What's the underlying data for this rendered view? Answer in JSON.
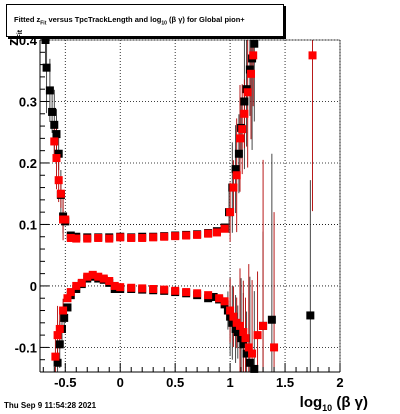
{
  "title": {
    "prefix": "Fitted ",
    "z": "z",
    "z_sub": "Fit",
    "mid": " versus TpcTrackLength and log",
    "log_sub": "10",
    "bg": " (β γ)",
    "suffix": " for Global pion+"
  },
  "yaxis": {
    "main": "z",
    "sub": "Fit"
  },
  "xaxis": {
    "main": "log",
    "sub": "10",
    "rest": " (β γ)"
  },
  "footer": "Thu Sep  9 11:54:28 2021",
  "colors": {
    "series_a": "#000000",
    "series_b": "#ff0000",
    "errors": "#b00000"
  },
  "chart_data": {
    "type": "scatter",
    "xlim": [
      -0.73,
      2.0
    ],
    "ylim": [
      -0.14,
      0.4
    ],
    "grid": true,
    "xticks": [
      -0.5,
      0,
      0.5,
      1,
      1.5,
      2
    ],
    "xtick_labels": [
      "-0.5",
      "0",
      "0.5",
      "1",
      "1.5",
      "2"
    ],
    "yticks": [
      -0.1,
      0,
      0.1,
      0.2,
      0.3,
      0.4
    ],
    "ytick_labels": [
      "-0.1",
      "0",
      "0.1",
      "0.2",
      "0.3",
      "0.4"
    ],
    "series": [
      {
        "color": "#000000",
        "upper": [
          [
            -0.68,
            0.4
          ],
          [
            -0.67,
            0.355
          ],
          [
            -0.64,
            0.318
          ],
          [
            -0.62,
            0.283
          ],
          [
            -0.6,
            0.262
          ],
          [
            -0.58,
            0.247
          ],
          [
            -0.56,
            0.215
          ],
          [
            -0.54,
            0.148
          ],
          [
            -0.52,
            0.113
          ],
          [
            -0.5,
            0.105
          ],
          [
            -0.45,
            0.082
          ],
          [
            -0.4,
            0.08
          ],
          [
            -0.3,
            0.079
          ],
          [
            -0.2,
            0.079
          ],
          [
            -0.1,
            0.079
          ],
          [
            0.0,
            0.08
          ],
          [
            0.1,
            0.079
          ],
          [
            0.2,
            0.08
          ],
          [
            0.3,
            0.08
          ],
          [
            0.4,
            0.081
          ],
          [
            0.5,
            0.082
          ],
          [
            0.6,
            0.083
          ],
          [
            0.7,
            0.084
          ],
          [
            0.8,
            0.086
          ],
          [
            0.88,
            0.089
          ],
          [
            0.95,
            0.095
          ],
          [
            0.99,
            0.12
          ],
          [
            1.02,
            0.16
          ],
          [
            1.05,
            0.19
          ],
          [
            1.08,
            0.215
          ],
          [
            1.1,
            0.257
          ],
          [
            1.13,
            0.3
          ],
          [
            1.15,
            0.32
          ],
          [
            1.18,
            0.352
          ],
          [
            1.2,
            0.37
          ],
          [
            1.22,
            0.394
          ]
        ],
        "lower": [
          [
            -0.57,
            -0.125
          ],
          [
            -0.55,
            -0.095
          ],
          [
            -0.53,
            -0.07
          ],
          [
            -0.51,
            -0.052
          ],
          [
            -0.48,
            -0.035
          ],
          [
            -0.45,
            -0.015
          ],
          [
            -0.4,
            -0.005
          ],
          [
            -0.35,
            0.003
          ],
          [
            -0.3,
            0.012
          ],
          [
            -0.25,
            0.015
          ],
          [
            -0.2,
            0.012
          ],
          [
            -0.15,
            0.01
          ],
          [
            -0.1,
            0.005
          ],
          [
            -0.05,
            -0.005
          ],
          [
            0.0,
            -0.005
          ],
          [
            0.1,
            -0.005
          ],
          [
            0.2,
            -0.006
          ],
          [
            0.3,
            -0.007
          ],
          [
            0.4,
            -0.008
          ],
          [
            0.5,
            -0.01
          ],
          [
            0.6,
            -0.012
          ],
          [
            0.7,
            -0.015
          ],
          [
            0.8,
            -0.02
          ],
          [
            0.85,
            -0.018
          ],
          [
            0.9,
            -0.022
          ],
          [
            0.95,
            -0.03
          ],
          [
            0.98,
            -0.04
          ],
          [
            1.0,
            -0.05
          ],
          [
            1.02,
            -0.06
          ],
          [
            1.05,
            -0.07
          ],
          [
            1.07,
            -0.075
          ],
          [
            1.1,
            -0.085
          ],
          [
            1.12,
            -0.095
          ],
          [
            1.15,
            -0.11
          ],
          [
            1.18,
            -0.125
          ],
          [
            1.22,
            -0.135
          ],
          [
            1.3,
            -0.065
          ],
          [
            1.38,
            -0.055
          ],
          [
            1.73,
            -0.048
          ]
        ]
      },
      {
        "color": "#ff0000",
        "upper": [
          [
            -0.6,
            0.235
          ],
          [
            -0.58,
            0.208
          ],
          [
            -0.56,
            0.172
          ],
          [
            -0.54,
            0.15
          ],
          [
            -0.52,
            0.108
          ],
          [
            -0.5,
            0.108
          ],
          [
            -0.45,
            0.078
          ],
          [
            -0.4,
            0.077
          ],
          [
            -0.3,
            0.077
          ],
          [
            -0.2,
            0.078
          ],
          [
            -0.1,
            0.077
          ],
          [
            0.0,
            0.079
          ],
          [
            0.1,
            0.078
          ],
          [
            0.2,
            0.078
          ],
          [
            0.3,
            0.079
          ],
          [
            0.4,
            0.08
          ],
          [
            0.5,
            0.081
          ],
          [
            0.6,
            0.082
          ],
          [
            0.7,
            0.083
          ],
          [
            0.8,
            0.085
          ],
          [
            0.88,
            0.087
          ],
          [
            0.95,
            0.093
          ],
          [
            1.0,
            0.12
          ],
          [
            1.03,
            0.16
          ],
          [
            1.06,
            0.18
          ],
          [
            1.09,
            0.24
          ],
          [
            1.11,
            0.255
          ],
          [
            1.13,
            0.28
          ],
          [
            1.16,
            0.315
          ],
          [
            1.19,
            0.345
          ],
          [
            1.21,
            0.375
          ],
          [
            1.75,
            0.375
          ]
        ],
        "lower": [
          [
            -0.59,
            -0.115
          ],
          [
            -0.57,
            -0.08
          ],
          [
            -0.55,
            -0.07
          ],
          [
            -0.52,
            -0.04
          ],
          [
            -0.48,
            -0.02
          ],
          [
            -0.45,
            -0.01
          ],
          [
            -0.4,
            0.0
          ],
          [
            -0.35,
            0.005
          ],
          [
            -0.3,
            0.015
          ],
          [
            -0.25,
            0.018
          ],
          [
            -0.2,
            0.015
          ],
          [
            -0.15,
            0.012
          ],
          [
            -0.1,
            0.008
          ],
          [
            -0.05,
            0.0
          ],
          [
            0.0,
            -0.002
          ],
          [
            0.1,
            -0.003
          ],
          [
            0.2,
            -0.004
          ],
          [
            0.3,
            -0.005
          ],
          [
            0.4,
            -0.006
          ],
          [
            0.5,
            -0.008
          ],
          [
            0.6,
            -0.01
          ],
          [
            0.7,
            -0.012
          ],
          [
            0.8,
            -0.015
          ],
          [
            0.9,
            -0.02
          ],
          [
            0.95,
            -0.025
          ],
          [
            1.0,
            -0.04
          ],
          [
            1.03,
            -0.05
          ],
          [
            1.06,
            -0.06
          ],
          [
            1.09,
            -0.065
          ],
          [
            1.12,
            -0.075
          ],
          [
            1.14,
            -0.085
          ],
          [
            1.17,
            -0.1
          ],
          [
            1.2,
            -0.11
          ],
          [
            1.25,
            -0.08
          ],
          [
            1.3,
            -0.065
          ],
          [
            1.4,
            -0.1
          ]
        ]
      }
    ]
  }
}
